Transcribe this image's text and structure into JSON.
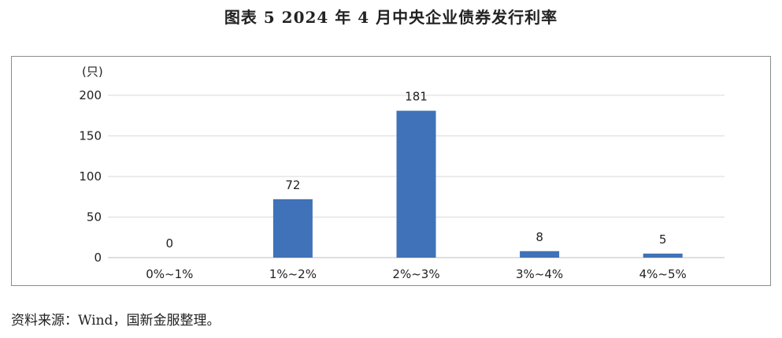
{
  "title": "图表 5  2024 年 4 月中央企业债券发行利率",
  "source": "资料来源：Wind，国新金服整理。",
  "chart_data": {
    "type": "bar",
    "title": "图表 5  2024 年 4 月中央企业债券发行利率",
    "ylabel": "(只)",
    "xlabel": "",
    "categories": [
      "0%~1%",
      "1%~2%",
      "2%~3%",
      "3%~4%",
      "4%~5%"
    ],
    "values": [
      0,
      72,
      181,
      8,
      5
    ],
    "data_labels": [
      "0",
      "72",
      "181",
      "8",
      "5"
    ],
    "ylim": [
      0,
      200
    ],
    "yticks": [
      0,
      50,
      100,
      150,
      200
    ],
    "grid": true,
    "legend": false,
    "colors": {
      "bar": "#3f72b8",
      "grid": "#d9d9d9",
      "axis": "#bfbfbf"
    }
  }
}
